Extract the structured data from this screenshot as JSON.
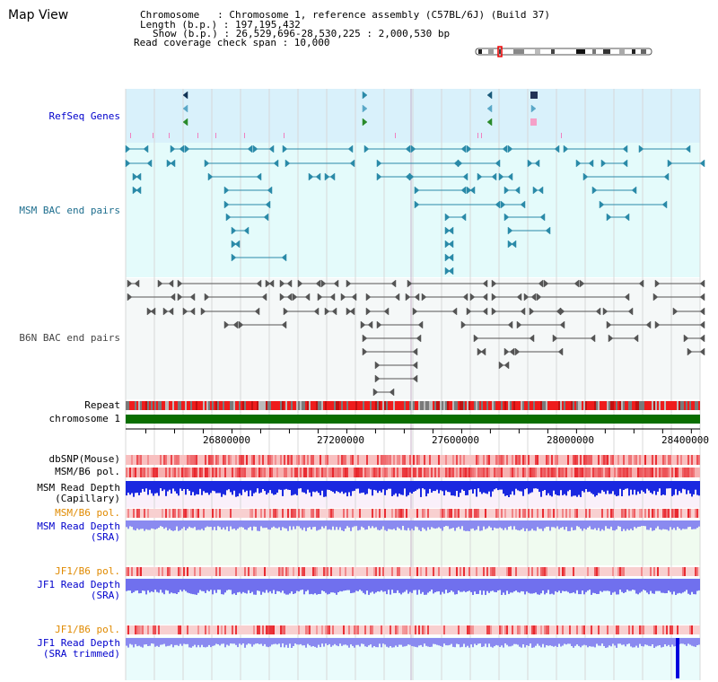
{
  "page": {
    "title": "Map View"
  },
  "info": {
    "chromosome_line": "Chromosome   : Chromosome 1, reference assembly (C57BL/6J) (Build 37)",
    "length_line": "Length (b.p.) : 197,195,432",
    "show_line": "Show (b.p.) : 26,529,696-28,530,225 : 2,000,530 bp",
    "span_line": "Read coverage check span : 10,000"
  },
  "region": {
    "start": 26529696,
    "end": 28530225,
    "total_bp": 2000530,
    "chromosome_length": 197195432
  },
  "tracks": {
    "refseq": "RefSeq Genes",
    "msm_bac": "MSM BAC end pairs",
    "b6n_bac": "B6N BAC end pairs",
    "repeat": "Repeat",
    "chromosome": "chromosome 1",
    "dbsnp": "dbSNP(Mouse)",
    "msm_pol": "MSM/B6 pol.",
    "msm_depth_cap_1": "MSM Read Depth",
    "msm_depth_cap_2": "(Capillary)",
    "msm_pol_2": "MSM/B6 pol.",
    "msm_depth_sra_1": "MSM Read Depth",
    "msm_depth_sra_2": "(SRA)",
    "jf1_pol": "JF1/B6 pol.",
    "jf1_depth_sra_1": "JF1 Read Depth",
    "jf1_depth_sra_2": "(SRA)",
    "jf1_pol_2": "JF1/B6 pol.",
    "jf1_depth_trim_1": "JF1 Read Depth",
    "jf1_depth_trim_2": "(SRA trimmed)"
  },
  "axis": {
    "ticks": [
      {
        "value": 26800000,
        "label": "26800000"
      },
      {
        "value": 27200000,
        "label": "27200000"
      },
      {
        "value": 27600000,
        "label": "27600000"
      },
      {
        "value": 28000000,
        "label": "28000000"
      },
      {
        "value": 28400000,
        "label": "28400000"
      }
    ]
  },
  "colors": {
    "refseq_bg": "#d9f1fb",
    "msm_bac_bg": "#e4fbfb",
    "b6n_bg": "#f5f8f8",
    "msm_bac_feature": "#2a8aa8",
    "b6n_feature": "#555555",
    "chromosome_bar": "#0a6e00",
    "pol_red": "#e8242a",
    "depth_blue": "#2020e8",
    "label_blue": "#0000cc",
    "label_teal": "#1e6e8e",
    "label_orange": "#e08a00"
  }
}
